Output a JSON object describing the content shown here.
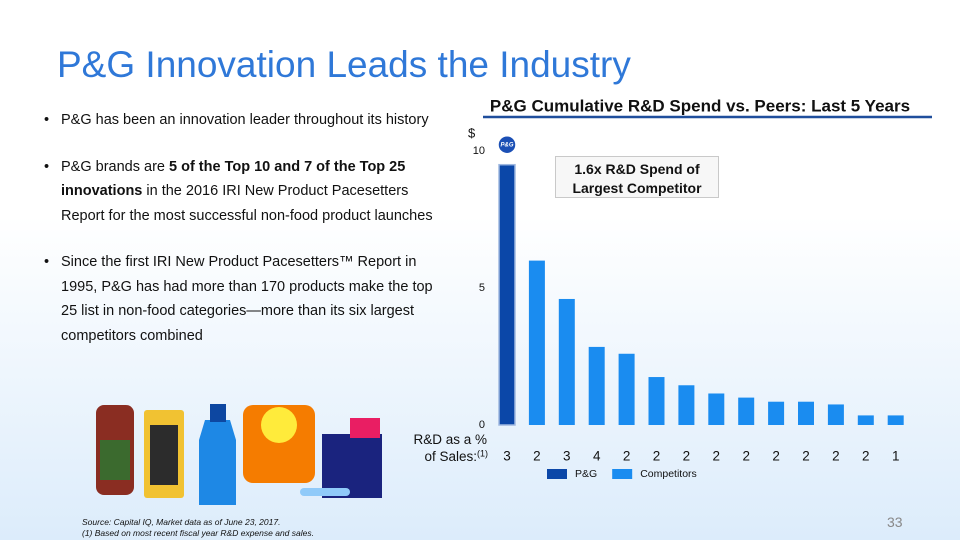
{
  "header": {
    "title": "P&G Innovation Leads the Industry"
  },
  "bullets": [
    [
      {
        "text": "P&G has been an innovation leader throughout its history"
      }
    ],
    [
      {
        "text": "P&G brands are "
      },
      {
        "text": "5 of the Top 10 and 7 of the Top 25 innovations",
        "bold": true
      },
      {
        "text": " in the 2016 IRI New Product Pacesetters Report for the most successful non-food product launches"
      }
    ],
    [
      {
        "text": "Since the first IRI New Product Pacesetters™ Report in 1995, P&G has had more than 170 products make the top 25 list in non-food categories—more than its six largest competitors combined"
      }
    ]
  ],
  "chart_data": {
    "type": "bar",
    "title": "P&G Cumulative R&D Spend vs. Peers: Last 5 Years",
    "ylabel": "$",
    "ylim": [
      0,
      10
    ],
    "yticks": [
      0,
      5,
      10
    ],
    "logo_text": "P&G",
    "annotation": "1.6x R&D Spend of Largest Competitor",
    "series": [
      {
        "name": "P&G",
        "color": "#0b47a8",
        "values": [
          9.5,
          null,
          null,
          null,
          null,
          null,
          null,
          null,
          null,
          null,
          null,
          null,
          null,
          null
        ]
      },
      {
        "name": "Competitors",
        "color": "#1a8cf0",
        "values": [
          null,
          6.0,
          4.6,
          2.85,
          2.6,
          1.75,
          1.45,
          1.15,
          1.0,
          0.85,
          0.85,
          0.75,
          0.35,
          0.35
        ]
      }
    ],
    "rd_pct_of_sales": {
      "label": "R&D as a % of Sales:",
      "footnote_ref": "(1)",
      "values": [
        3,
        2,
        3,
        4,
        2,
        2,
        2,
        2,
        2,
        2,
        2,
        2,
        2,
        1
      ]
    }
  },
  "footer": {
    "source": "Source: Capital IQ, Market data as of June 23, 2017.",
    "note": "(1) Based on most recent fiscal year R&D expense and sales.",
    "page_number": 33
  }
}
